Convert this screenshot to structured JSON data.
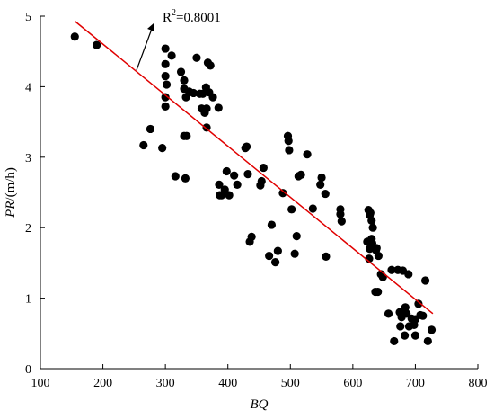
{
  "chart_data": {
    "type": "scatter",
    "xlabel": "BQ",
    "ylabel": "PR/(m/h)",
    "ylabel_parts": {
      "italic": "PR",
      "unit": "/(m/h)"
    },
    "xlim": [
      100,
      800
    ],
    "ylim": [
      0,
      5
    ],
    "x_ticks": [
      100,
      200,
      300,
      400,
      500,
      600,
      700,
      800
    ],
    "y_ticks": [
      0,
      1,
      2,
      3,
      4,
      5
    ],
    "annotation": {
      "base": "R",
      "sup": "2",
      "rest": "=0.8001"
    },
    "regression_line": {
      "x": [
        155,
        728
      ],
      "y": [
        4.93,
        0.78
      ],
      "color": "#e00000"
    },
    "point_color": "#000000",
    "series": [
      {
        "x": [
          155,
          190,
          265,
          276,
          295,
          300,
          300,
          300,
          300,
          300,
          302,
          310,
          316,
          325,
          330,
          330,
          330,
          332,
          333,
          334,
          338,
          345,
          350,
          355,
          358,
          360,
          363,
          365,
          366,
          366,
          368,
          370,
          372,
          376,
          385,
          386,
          387,
          390,
          395,
          398,
          402,
          410,
          415,
          428,
          430,
          432,
          435,
          438,
          452,
          454,
          457,
          466,
          470,
          476,
          480,
          488,
          496,
          497,
          498,
          502,
          507,
          510,
          513,
          517,
          527,
          536,
          548,
          550,
          556,
          557,
          580,
          580,
          582,
          623,
          625,
          626,
          627,
          627,
          628,
          630,
          630,
          631,
          632,
          636,
          637,
          638,
          640,
          641,
          645,
          648,
          657,
          662,
          666,
          672,
          675,
          676,
          678,
          680,
          683,
          683,
          684,
          686,
          689,
          690,
          694,
          698,
          700,
          700,
          705,
          708,
          712,
          716,
          720,
          726
        ],
        "y": [
          4.71,
          4.59,
          3.17,
          3.4,
          3.13,
          4.54,
          4.32,
          4.15,
          3.85,
          3.72,
          4.03,
          4.44,
          2.73,
          4.21,
          4.09,
          3.97,
          3.3,
          2.7,
          3.85,
          3.3,
          3.93,
          3.91,
          4.41,
          3.9,
          3.69,
          3.9,
          3.63,
          3.99,
          3.42,
          3.69,
          4.34,
          3.92,
          4.3,
          3.85,
          3.7,
          2.61,
          2.46,
          2.46,
          2.54,
          2.8,
          2.46,
          2.74,
          2.61,
          3.13,
          3.15,
          2.76,
          1.8,
          1.87,
          2.6,
          2.66,
          2.85,
          1.6,
          2.04,
          1.51,
          1.67,
          2.49,
          3.3,
          3.23,
          3.1,
          2.26,
          1.63,
          1.88,
          2.73,
          2.75,
          3.04,
          2.27,
          2.61,
          2.71,
          2.48,
          1.59,
          2.26,
          2.19,
          2.09,
          1.8,
          2.25,
          1.56,
          2.18,
          1.7,
          2.21,
          2.1,
          1.84,
          1.78,
          2.0,
          1.09,
          1.68,
          1.71,
          1.09,
          1.6,
          1.34,
          1.3,
          0.78,
          1.4,
          0.39,
          1.4,
          0.8,
          0.6,
          0.73,
          1.39,
          0.47,
          0.82,
          0.87,
          0.78,
          1.34,
          0.6,
          0.71,
          0.62,
          0.47,
          0.7,
          0.92,
          0.76,
          0.75,
          1.25,
          0.39,
          0.55
        ]
      }
    ]
  }
}
